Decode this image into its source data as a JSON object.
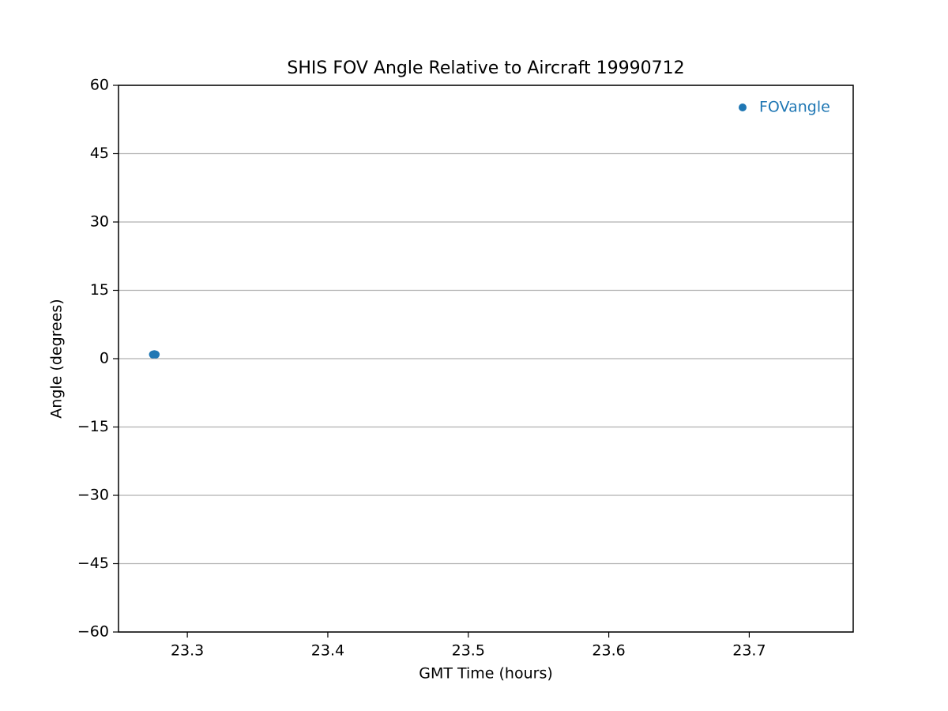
{
  "chart_data": {
    "type": "scatter",
    "title": "SHIS FOV Angle Relative to Aircraft 19990712",
    "x_label": "GMT Time (hours)",
    "y_label": "Angle (degrees)",
    "series": [
      {
        "name": "FOVangle",
        "color": "#1f77b4",
        "x": [
          23.2755,
          23.2765,
          23.2775
        ],
        "values": [
          0.9,
          1.0,
          0.9
        ]
      }
    ],
    "xlim": [
      23.251,
      23.774
    ],
    "xticks": [
      23.3,
      23.4,
      23.5,
      23.6,
      23.7
    ],
    "ylim": [
      -60,
      60
    ],
    "yticks": [
      {
        "value": -60,
        "label": "−60"
      },
      {
        "value": -45,
        "label": "−45"
      },
      {
        "value": -30,
        "label": "−30"
      },
      {
        "value": -15,
        "label": "−15"
      },
      0,
      15,
      30,
      45,
      60
    ],
    "grid": "y",
    "legend": "upper right"
  }
}
